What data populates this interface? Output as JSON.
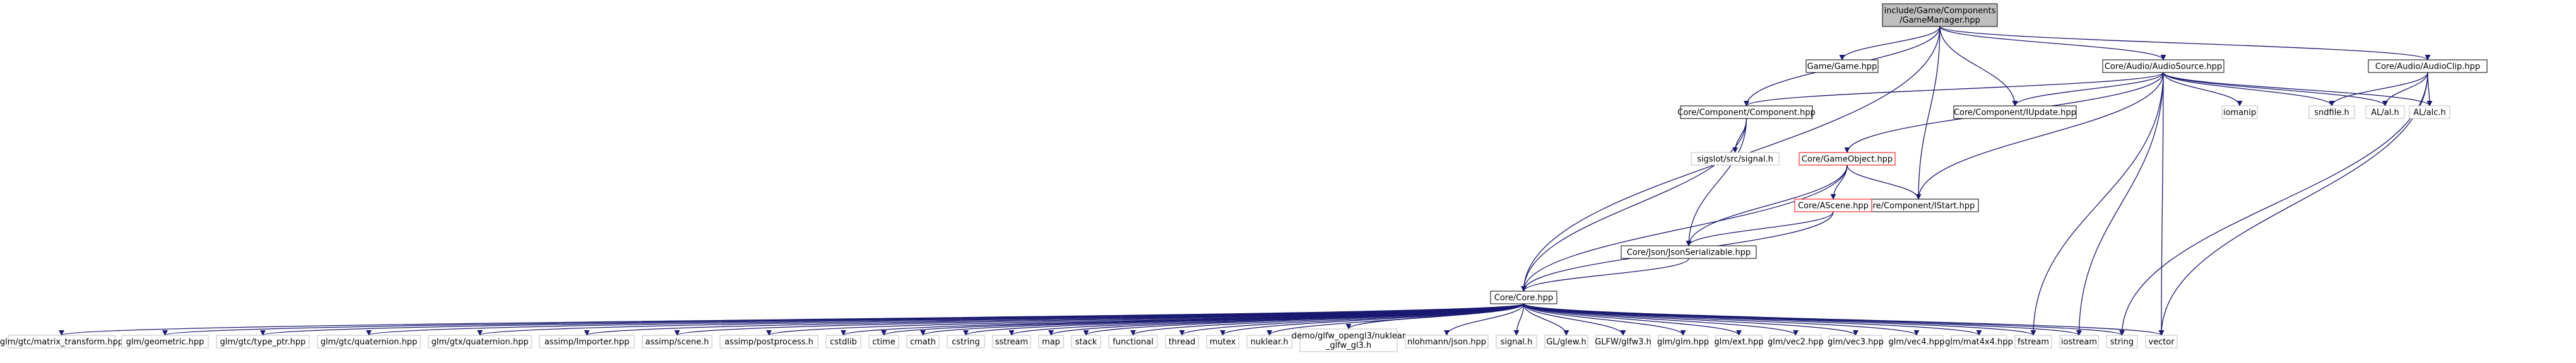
{
  "colors": {
    "edge": "#191970",
    "node_border": "#000000",
    "node_border_missing": "#bfbfbf",
    "node_border_cycle": "#ff0000",
    "node_fill": "#ffffff",
    "node_fill_root": "#bfbfbf",
    "text": "#000000"
  },
  "nodes": [
    {
      "id": "gm",
      "label": "include/Game/Components\n/GameManager.hpp",
      "kind": "root"
    },
    {
      "id": "game",
      "label": "Game/Game.hpp",
      "kind": "normal"
    },
    {
      "id": "asrc",
      "label": "Core/Audio/AudioSource.hpp",
      "kind": "normal"
    },
    {
      "id": "aclip",
      "label": "Core/Audio/AudioClip.hpp",
      "kind": "normal"
    },
    {
      "id": "comp",
      "label": "Core/Component/Component.hpp",
      "kind": "normal"
    },
    {
      "id": "iupd",
      "label": "Core/Component/IUpdate.hpp",
      "kind": "normal"
    },
    {
      "id": "iomanip",
      "label": "iomanip",
      "kind": "missing"
    },
    {
      "id": "sndfile",
      "label": "sndfile.h",
      "kind": "missing"
    },
    {
      "id": "al",
      "label": "AL/al.h",
      "kind": "missing"
    },
    {
      "id": "alc",
      "label": "AL/alc.h",
      "kind": "missing"
    },
    {
      "id": "sigslot",
      "label": "sigslot/src/signal.h",
      "kind": "missing"
    },
    {
      "id": "gobj",
      "label": "Core/GameObject.hpp",
      "kind": "cycle"
    },
    {
      "id": "istart",
      "label": "Core/Component/IStart.hpp",
      "kind": "normal"
    },
    {
      "id": "ascene",
      "label": "Core/AScene.hpp",
      "kind": "cycle"
    },
    {
      "id": "json",
      "label": "Core/Json/JsonSerializable.hpp",
      "kind": "normal"
    },
    {
      "id": "core",
      "label": "Core/Core.hpp",
      "kind": "normal"
    },
    {
      "id": "l1",
      "label": "glm/gtc/matrix_transform.hpp",
      "kind": "missing"
    },
    {
      "id": "l2",
      "label": "glm/geometric.hpp",
      "kind": "missing"
    },
    {
      "id": "l3",
      "label": "glm/gtc/type_ptr.hpp",
      "kind": "missing"
    },
    {
      "id": "l4",
      "label": "glm/gtc/quaternion.hpp",
      "kind": "missing"
    },
    {
      "id": "l5",
      "label": "glm/gtx/quaternion.hpp",
      "kind": "missing"
    },
    {
      "id": "l6",
      "label": "assimp/Importer.hpp",
      "kind": "missing"
    },
    {
      "id": "l7",
      "label": "assimp/scene.h",
      "kind": "missing"
    },
    {
      "id": "l8",
      "label": "assimp/postprocess.h",
      "kind": "missing"
    },
    {
      "id": "l9",
      "label": "cstdlib",
      "kind": "missing"
    },
    {
      "id": "l10",
      "label": "ctime",
      "kind": "missing"
    },
    {
      "id": "l11",
      "label": "cmath",
      "kind": "missing"
    },
    {
      "id": "l12",
      "label": "cstring",
      "kind": "missing"
    },
    {
      "id": "l13",
      "label": "sstream",
      "kind": "missing"
    },
    {
      "id": "l14",
      "label": "map",
      "kind": "missing"
    },
    {
      "id": "l15",
      "label": "stack",
      "kind": "missing"
    },
    {
      "id": "l16",
      "label": "functional",
      "kind": "missing"
    },
    {
      "id": "l17",
      "label": "thread",
      "kind": "missing"
    },
    {
      "id": "l18",
      "label": "mutex",
      "kind": "missing"
    },
    {
      "id": "l19",
      "label": "nuklear.h",
      "kind": "missing"
    },
    {
      "id": "l20",
      "label": "demo/glfw_opengl3/nuklear\n_glfw_gl3.h",
      "kind": "missing"
    },
    {
      "id": "l21",
      "label": "nlohmann/json.hpp",
      "kind": "missing"
    },
    {
      "id": "l22",
      "label": "signal.h",
      "kind": "missing"
    },
    {
      "id": "l23",
      "label": "GL/glew.h",
      "kind": "missing"
    },
    {
      "id": "l24",
      "label": "GLFW/glfw3.h",
      "kind": "missing"
    },
    {
      "id": "l25",
      "label": "glm/glm.hpp",
      "kind": "missing"
    },
    {
      "id": "l26",
      "label": "glm/ext.hpp",
      "kind": "missing"
    },
    {
      "id": "l27",
      "label": "glm/vec2.hpp",
      "kind": "missing"
    },
    {
      "id": "l28",
      "label": "glm/vec3.hpp",
      "kind": "missing"
    },
    {
      "id": "l29",
      "label": "glm/vec4.hpp",
      "kind": "missing"
    },
    {
      "id": "l30",
      "label": "glm/mat4x4.hpp",
      "kind": "missing"
    },
    {
      "id": "l31",
      "label": "fstream",
      "kind": "missing"
    },
    {
      "id": "l32",
      "label": "iostream",
      "kind": "missing"
    },
    {
      "id": "l33",
      "label": "string",
      "kind": "missing"
    },
    {
      "id": "l34",
      "label": "vector",
      "kind": "missing"
    }
  ],
  "edges": [
    [
      "gm",
      "game"
    ],
    [
      "gm",
      "asrc"
    ],
    [
      "gm",
      "aclip"
    ],
    [
      "gm",
      "comp"
    ],
    [
      "gm",
      "iupd"
    ],
    [
      "gm",
      "istart"
    ],
    [
      "gm",
      "core"
    ],
    [
      "asrc",
      "comp"
    ],
    [
      "asrc",
      "iupd"
    ],
    [
      "asrc",
      "iomanip"
    ],
    [
      "asrc",
      "sndfile"
    ],
    [
      "asrc",
      "al"
    ],
    [
      "asrc",
      "alc"
    ],
    [
      "asrc",
      "gobj"
    ],
    [
      "asrc",
      "istart"
    ],
    [
      "asrc",
      "l31"
    ],
    [
      "asrc",
      "l32"
    ],
    [
      "asrc",
      "l34"
    ],
    [
      "aclip",
      "sndfile"
    ],
    [
      "aclip",
      "al"
    ],
    [
      "aclip",
      "alc"
    ],
    [
      "aclip",
      "l33"
    ],
    [
      "aclip",
      "l34"
    ],
    [
      "comp",
      "sigslot"
    ],
    [
      "comp",
      "core"
    ],
    [
      "comp",
      "json"
    ],
    [
      "gobj",
      "istart"
    ],
    [
      "gobj",
      "ascene"
    ],
    [
      "gobj",
      "json"
    ],
    [
      "gobj",
      "core"
    ],
    [
      "ascene",
      "json"
    ],
    [
      "ascene",
      "core"
    ],
    [
      "json",
      "core"
    ],
    [
      "core",
      "l1"
    ],
    [
      "core",
      "l2"
    ],
    [
      "core",
      "l3"
    ],
    [
      "core",
      "l4"
    ],
    [
      "core",
      "l5"
    ],
    [
      "core",
      "l6"
    ],
    [
      "core",
      "l7"
    ],
    [
      "core",
      "l8"
    ],
    [
      "core",
      "l9"
    ],
    [
      "core",
      "l10"
    ],
    [
      "core",
      "l11"
    ],
    [
      "core",
      "l12"
    ],
    [
      "core",
      "l13"
    ],
    [
      "core",
      "l14"
    ],
    [
      "core",
      "l15"
    ],
    [
      "core",
      "l16"
    ],
    [
      "core",
      "l17"
    ],
    [
      "core",
      "l18"
    ],
    [
      "core",
      "l19"
    ],
    [
      "core",
      "l20"
    ],
    [
      "core",
      "l21"
    ],
    [
      "core",
      "l22"
    ],
    [
      "core",
      "l23"
    ],
    [
      "core",
      "l24"
    ],
    [
      "core",
      "l25"
    ],
    [
      "core",
      "l26"
    ],
    [
      "core",
      "l27"
    ],
    [
      "core",
      "l28"
    ],
    [
      "core",
      "l29"
    ],
    [
      "core",
      "l30"
    ],
    [
      "core",
      "l31"
    ],
    [
      "core",
      "l32"
    ],
    [
      "core",
      "l33"
    ],
    [
      "core",
      "l34"
    ]
  ]
}
